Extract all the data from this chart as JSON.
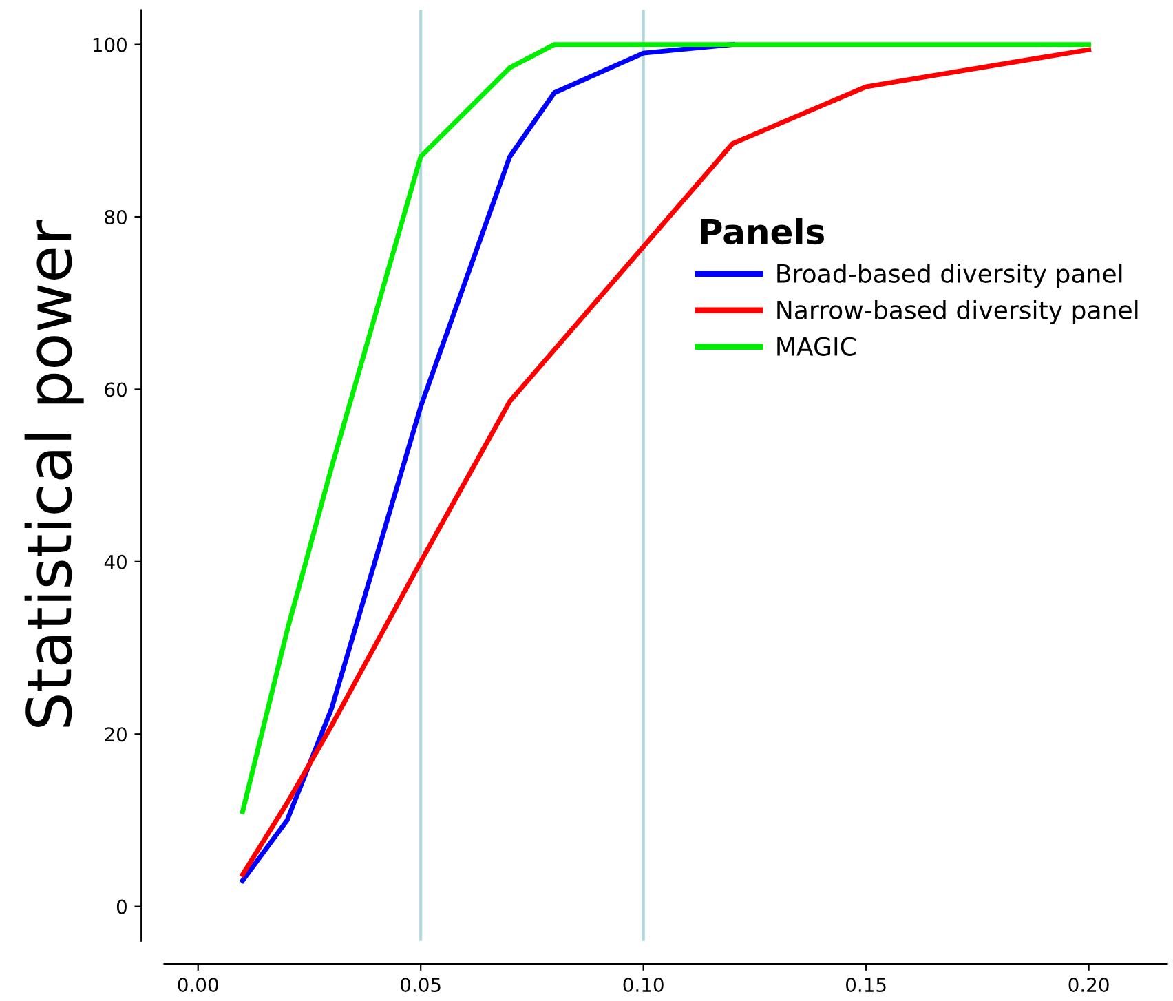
{
  "chart_data": {
    "type": "line",
    "ylabel": "Statistical power",
    "legend_title": "Panels",
    "x": [
      0.01,
      0.02,
      0.03,
      0.05,
      0.07,
      0.08,
      0.1,
      0.12,
      0.15,
      0.2
    ],
    "series": [
      {
        "name": "Broad-based diversity panel",
        "color": "#0000ff",
        "values": [
          3,
          10,
          23,
          58,
          87,
          94.4,
          99,
          100,
          null,
          null
        ]
      },
      {
        "name": "Narrow-based diversity panel",
        "color": "#ff0000",
        "x": [
          0.01,
          0.02,
          0.03,
          0.05,
          0.07,
          0.12,
          0.15,
          0.2
        ],
        "values": [
          3.7,
          12,
          21,
          40,
          58.6,
          88.5,
          95.1,
          99.4
        ]
      },
      {
        "name": "MAGIC",
        "color": "#00ee00",
        "values": [
          11,
          32,
          51,
          87,
          97.3,
          100,
          100,
          100,
          100,
          100
        ]
      }
    ],
    "xlim": [
      -0.0076,
      0.2176
    ],
    "ylim": [
      -4,
      104
    ],
    "xticks": [
      {
        "value": 0.0,
        "label": "0.00"
      },
      {
        "value": 0.05,
        "label": "0.05"
      },
      {
        "value": 0.1,
        "label": "0.10"
      },
      {
        "value": 0.15,
        "label": "0.15"
      },
      {
        "value": 0.2,
        "label": "0.20"
      }
    ],
    "yticks": [
      0,
      20,
      40,
      60,
      80,
      100
    ],
    "ref_lines": [
      {
        "axis": "x",
        "value": 0.05,
        "color": "#b0d8dc"
      },
      {
        "axis": "x",
        "value": 0.1,
        "color": "#b0d8dc"
      }
    ],
    "legend": "right",
    "grid": false,
    "marker": "none",
    "line_style": "solid"
  }
}
